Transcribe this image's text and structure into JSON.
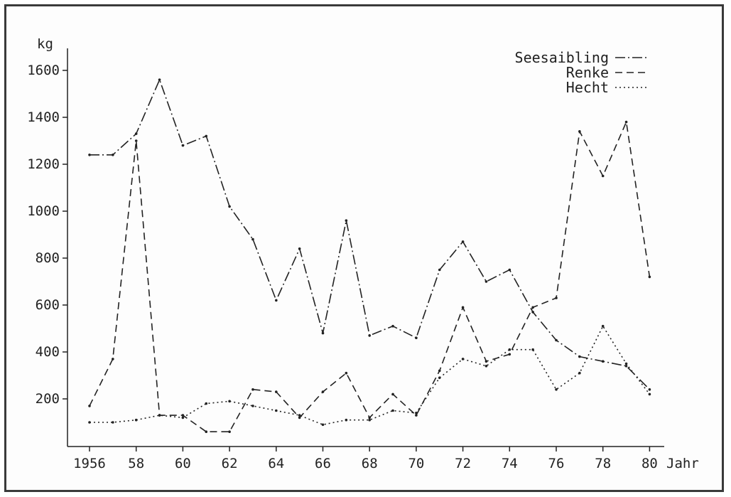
{
  "chart_data": {
    "type": "line",
    "title": "",
    "ylabel": "kg",
    "xlabel": "Jahr",
    "x": [
      1956,
      1957,
      1958,
      1959,
      1960,
      1961,
      1962,
      1963,
      1964,
      1965,
      1966,
      1967,
      1968,
      1969,
      1970,
      1971,
      1972,
      1973,
      1974,
      1975,
      1976,
      1977,
      1978,
      1979,
      1980
    ],
    "x_tick_values": [
      1956,
      1958,
      1960,
      1962,
      1964,
      1966,
      1968,
      1970,
      1972,
      1974,
      1976,
      1978,
      1980
    ],
    "x_tick_labels": [
      "1956",
      "58",
      "60",
      "62",
      "64",
      "66",
      "68",
      "70",
      "72",
      "74",
      "76",
      "78",
      "80"
    ],
    "y_ticks": [
      200,
      400,
      600,
      800,
      1000,
      1200,
      1400,
      1600
    ],
    "xlim": [
      1956,
      1981
    ],
    "ylim": [
      0,
      1700
    ],
    "grid": false,
    "legend_position": "top-right",
    "series": [
      {
        "name": "Seesaibling",
        "dash": "dash-dot",
        "values": [
          1240,
          1240,
          1330,
          1560,
          1280,
          1320,
          1020,
          880,
          620,
          840,
          480,
          960,
          470,
          510,
          460,
          750,
          870,
          700,
          750,
          570,
          450,
          380,
          360,
          340,
          240
        ]
      },
      {
        "name": "Renke",
        "dash": "dashed",
        "values": [
          170,
          370,
          1300,
          130,
          130,
          60,
          60,
          240,
          230,
          120,
          230,
          310,
          120,
          220,
          130,
          320,
          590,
          360,
          390,
          590,
          630,
          1340,
          1150,
          1380,
          720
        ]
      },
      {
        "name": "Hecht",
        "dash": "dotted",
        "values": [
          100,
          100,
          110,
          130,
          120,
          180,
          190,
          170,
          150,
          130,
          90,
          110,
          110,
          150,
          140,
          290,
          370,
          340,
          410,
          410,
          240,
          310,
          510,
          350,
          220
        ]
      }
    ]
  }
}
